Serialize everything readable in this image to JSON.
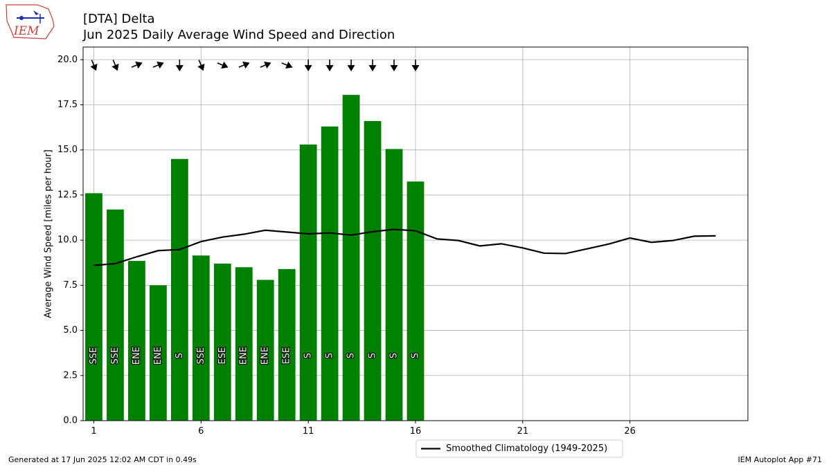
{
  "header": {
    "title_line1": "[DTA] Delta",
    "title_line2": "Jun 2025 Daily Average Wind Speed and Direction",
    "logo_text": "IEM"
  },
  "footer": {
    "left": "Generated at 17 Jun 2025 12:02 AM CDT in 0.49s",
    "right": "IEM Autoplot App #71"
  },
  "chart_data": {
    "type": "bar",
    "title": "Jun 2025 Daily Average Wind Speed and Direction",
    "ylabel": "Average Wind Speed [miles per hour]",
    "xlabel": "",
    "xlim": [
      0.5,
      31.5
    ],
    "ylim": [
      0,
      20.7
    ],
    "xticks": [
      1,
      6,
      11,
      16,
      21,
      26
    ],
    "yticks": [
      0.0,
      2.5,
      5.0,
      7.5,
      10.0,
      12.5,
      15.0,
      17.5,
      20.0
    ],
    "grid": true,
    "bar_color": "#008000",
    "days": [
      1,
      2,
      3,
      4,
      5,
      6,
      7,
      8,
      9,
      10,
      11,
      12,
      13,
      14,
      15,
      16
    ],
    "values": [
      12.6,
      11.7,
      8.85,
      7.5,
      14.5,
      9.15,
      8.7,
      8.5,
      7.8,
      8.4,
      15.3,
      16.3,
      18.05,
      16.6,
      15.05,
      13.25
    ],
    "directions": [
      "SSE",
      "SSE",
      "ENE",
      "ENE",
      "S",
      "SSE",
      "ESE",
      "ENE",
      "ENE",
      "ESE",
      "S",
      "S",
      "S",
      "S",
      "S",
      "S"
    ],
    "arrow_angles_deg": [
      157.5,
      157.5,
      67.5,
      67.5,
      180,
      157.5,
      112.5,
      67.5,
      67.5,
      112.5,
      180,
      180,
      180,
      180,
      180,
      180
    ],
    "arrow_y_value": 19.7,
    "climatology": {
      "name": "Smoothed Climatology (1949-2025)",
      "color": "#000000",
      "x": [
        1,
        2,
        3,
        4,
        5,
        6,
        7,
        8,
        9,
        10,
        11,
        12,
        13,
        14,
        15,
        16,
        17,
        18,
        19,
        20,
        21,
        22,
        23,
        24,
        25,
        26,
        27,
        28,
        29,
        30
      ],
      "y": [
        8.6,
        8.7,
        9.08,
        9.42,
        9.48,
        9.92,
        10.17,
        10.33,
        10.55,
        10.45,
        10.35,
        10.4,
        10.28,
        10.47,
        10.6,
        10.52,
        10.07,
        9.98,
        9.68,
        9.8,
        9.57,
        9.28,
        9.26,
        9.52,
        9.78,
        10.12,
        9.88,
        9.98,
        10.22,
        10.24
      ]
    },
    "legend": "lower-center"
  }
}
